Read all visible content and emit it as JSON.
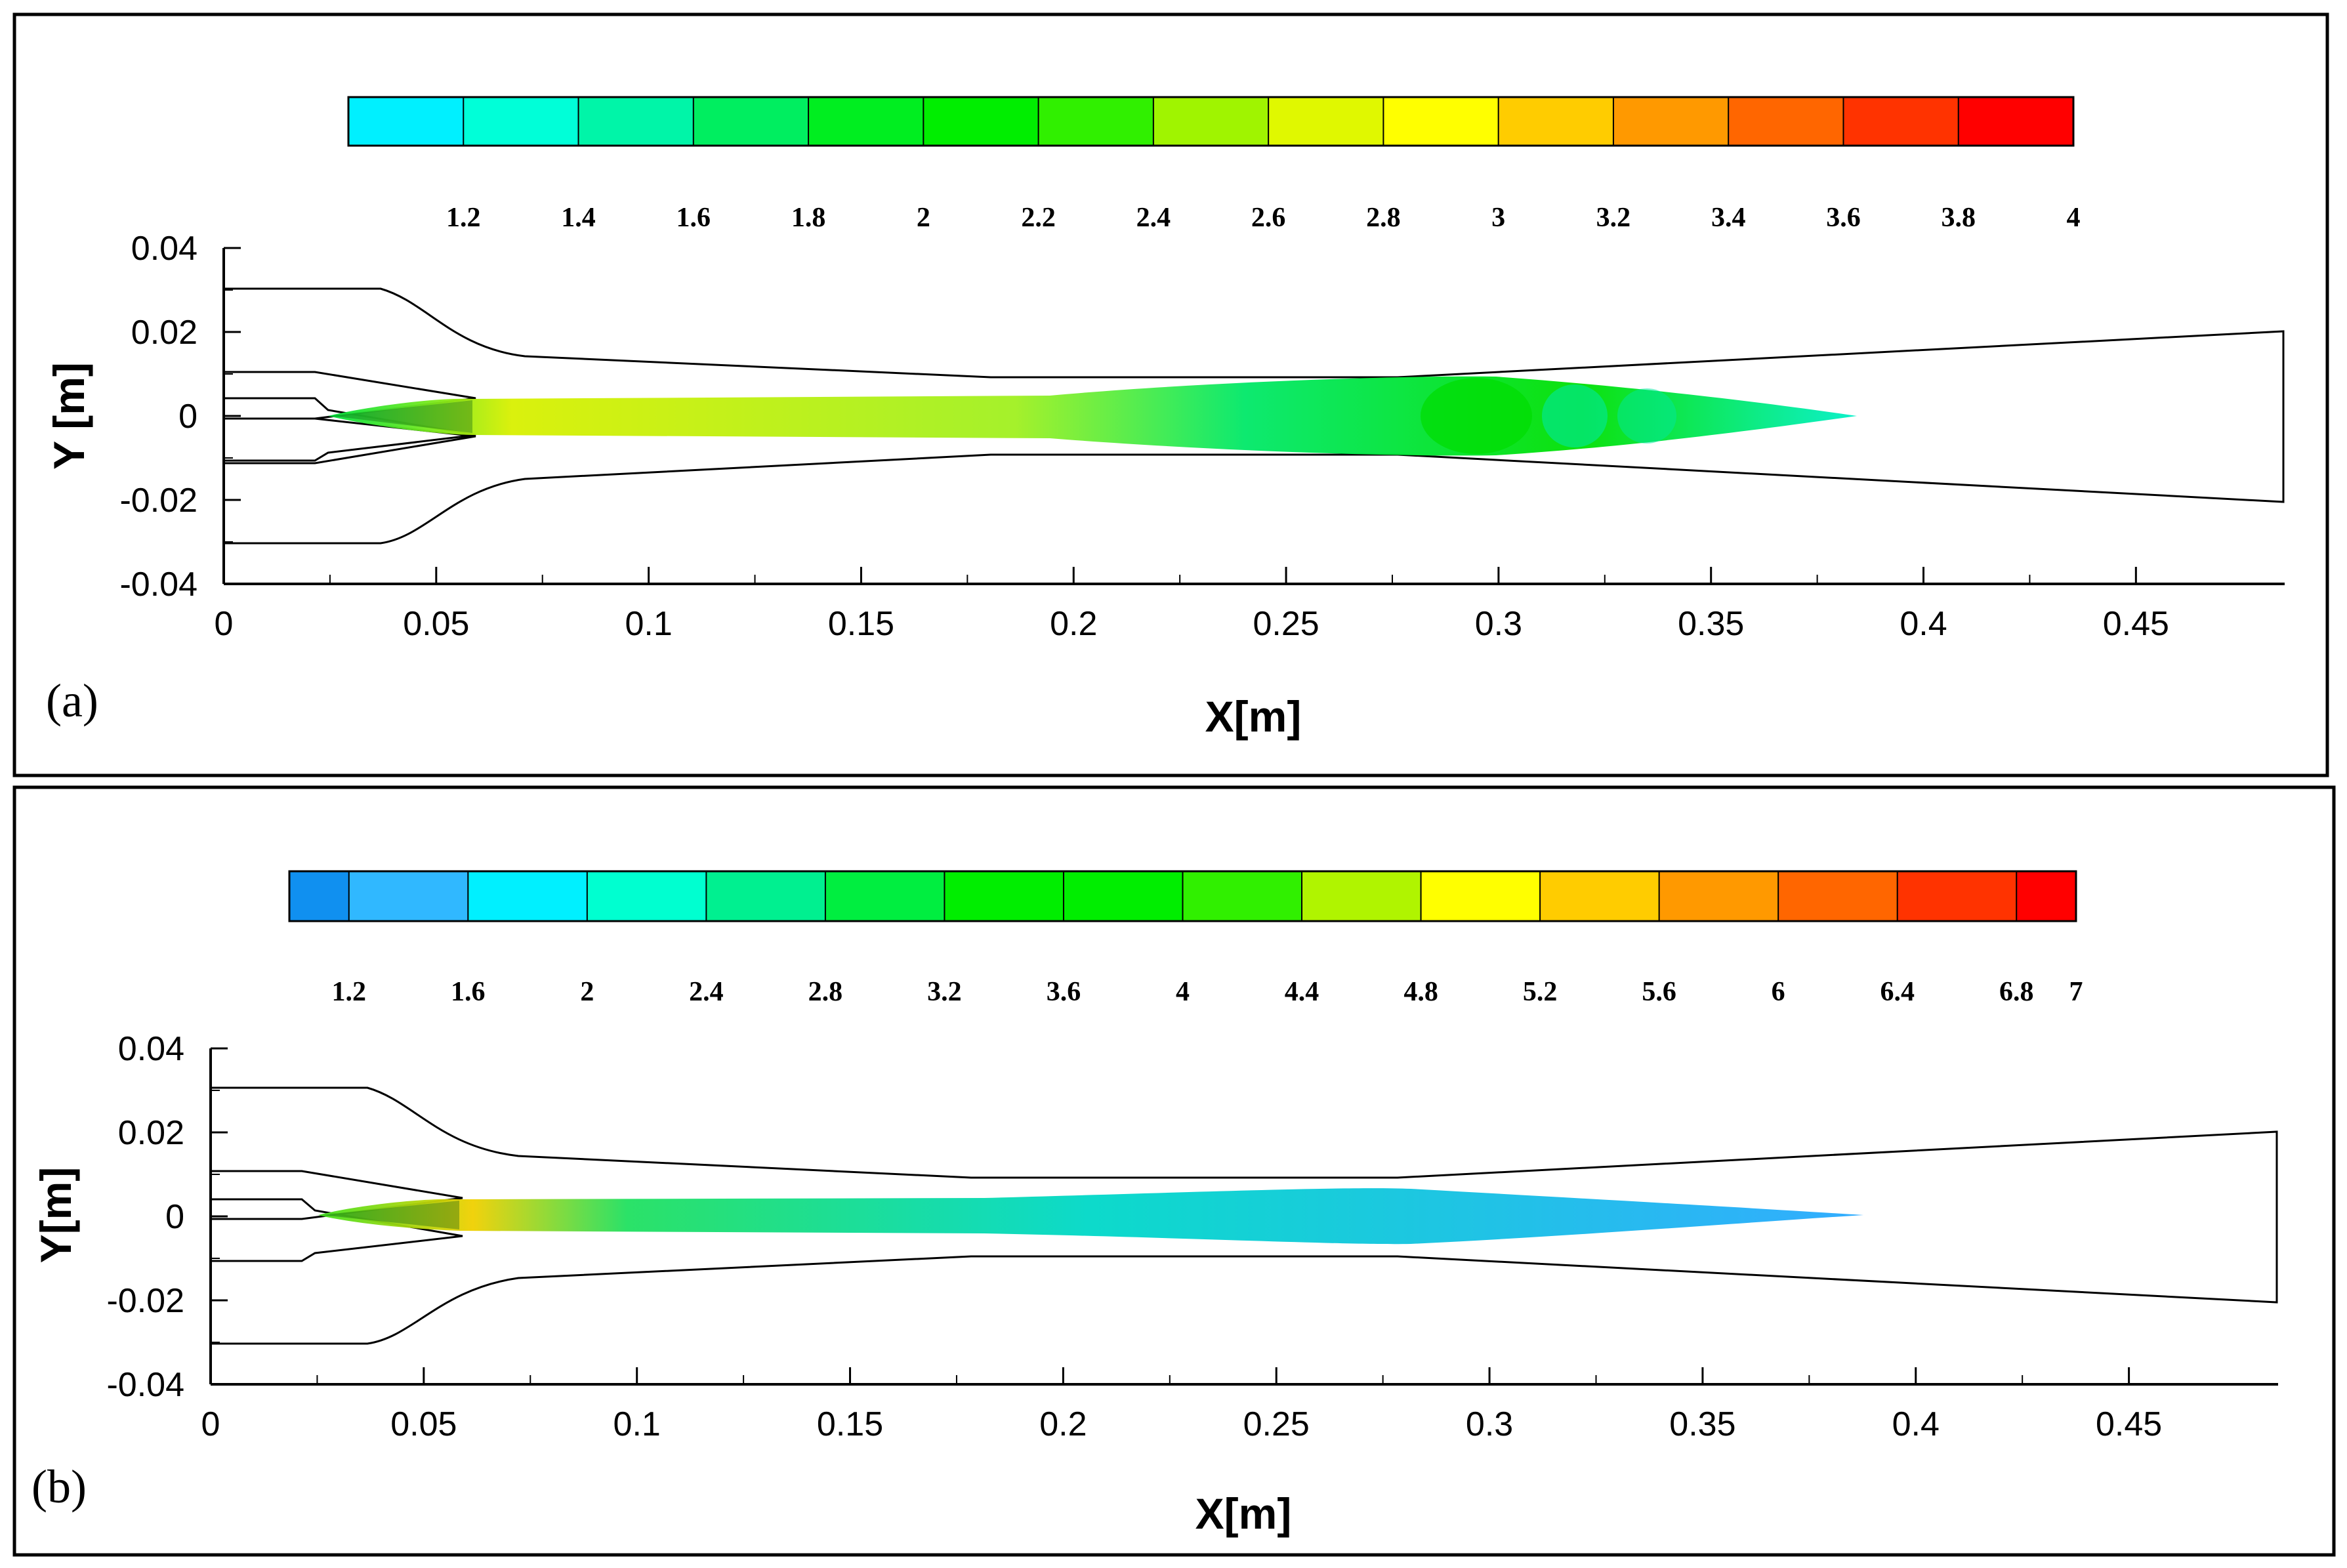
{
  "chart_data": [
    {
      "type": "heatmap",
      "panel_label": "(a)",
      "xlabel": "X[m]",
      "ylabel": "Y [m]",
      "xlim": [
        0,
        0.485
      ],
      "ylim": [
        -0.04,
        0.04
      ],
      "x_ticks": [
        0,
        0.05,
        0.1,
        0.15,
        0.2,
        0.25,
        0.3,
        0.35,
        0.4,
        0.45
      ],
      "x_tick_labels": [
        "0",
        "0.05",
        "0.1",
        "0.15",
        "0.2",
        "0.25",
        "0.3",
        "0.35",
        "0.4",
        "0.45"
      ],
      "y_ticks": [
        0.04,
        0.02,
        0,
        -0.02,
        -0.04
      ],
      "y_tick_labels": [
        "0.04",
        "0.02",
        "0",
        "-0.02",
        "-0.04"
      ],
      "colorbar": {
        "min": 1.0,
        "max": 4.0,
        "tick_values": [
          1.2,
          1.4,
          1.6,
          1.8,
          2,
          2.2,
          2.4,
          2.6,
          2.8,
          3,
          3.2,
          3.4,
          3.6,
          3.8,
          4
        ],
        "tick_labels": [
          "1.2",
          "1.4",
          "1.6",
          "1.8",
          "2",
          "2.2",
          "2.4",
          "2.6",
          "2.8",
          "3",
          "3.2",
          "3.4",
          "3.6",
          "3.8",
          "4"
        ],
        "colors": [
          "#00f0ff",
          "#00ffd8",
          "#00f5a8",
          "#00ee60",
          "#00ee20",
          "#00ee00",
          "#30f000",
          "#a0f400",
          "#e0f800",
          "#ffff00",
          "#ffcc00",
          "#ff9900",
          "#ff6600",
          "#ff3300",
          "#ff0000"
        ]
      },
      "plume_color": "#00ea8c",
      "core_color": "#e6f000"
    },
    {
      "type": "heatmap",
      "panel_label": "(b)",
      "xlabel": "X[m]",
      "ylabel": "Y[m]",
      "xlim": [
        0,
        0.485
      ],
      "ylim": [
        -0.04,
        0.04
      ],
      "x_ticks": [
        0,
        0.05,
        0.1,
        0.15,
        0.2,
        0.25,
        0.3,
        0.35,
        0.4,
        0.45
      ],
      "x_tick_labels": [
        "0",
        "0.05",
        "0.1",
        "0.15",
        "0.2",
        "0.25",
        "0.3",
        "0.35",
        "0.4",
        "0.45"
      ],
      "y_ticks": [
        0.04,
        0.02,
        0,
        -0.02,
        -0.04
      ],
      "y_tick_labels": [
        "0.04",
        "0.02",
        "0",
        "-0.02",
        "-0.04"
      ],
      "colorbar": {
        "min": 1.0,
        "max": 7.0,
        "tick_values": [
          1.2,
          1.6,
          2,
          2.4,
          2.8,
          3.2,
          3.6,
          4,
          4.4,
          4.8,
          5.2,
          5.6,
          6,
          6.4,
          6.8,
          7
        ],
        "tick_labels": [
          "1.2",
          "1.6",
          "2",
          "2.4",
          "2.8",
          "3.2",
          "3.6",
          "4",
          "4.4",
          "4.8",
          "5.2",
          "5.6",
          "6",
          "6.4",
          "6.8",
          "7"
        ],
        "colors": [
          "#1090f0",
          "#30b8ff",
          "#00f0ff",
          "#00ffd0",
          "#00f090",
          "#00ee40",
          "#00ee00",
          "#00ee00",
          "#30f000",
          "#b0f400",
          "#ffff00",
          "#ffcc00",
          "#ff9900",
          "#ff6600",
          "#ff3300",
          "#ff0000"
        ]
      },
      "plume_color": "#22b8ff",
      "core_color": "#22e070"
    }
  ]
}
